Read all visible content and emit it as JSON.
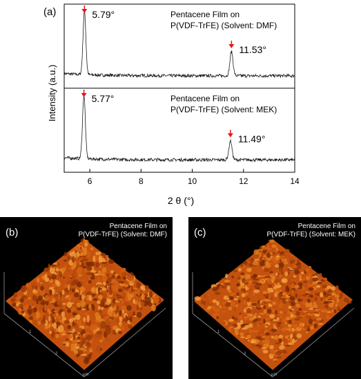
{
  "chart_data": {
    "type": "line",
    "panel_label": "(a)",
    "xlabel": "2 θ (°)",
    "ylabel": "Intensity (a.u.)",
    "xlim": [
      5,
      14
    ],
    "xticks": [
      "6",
      "8",
      "10",
      "12",
      "14"
    ],
    "xtick_values": [
      6,
      8,
      10,
      12,
      14
    ],
    "arrow_color": "#e8141b",
    "line_color": "#1a1a1a",
    "subplots": [
      {
        "title_line1": "Pentacene Film on",
        "title_line2": "P(VDF-TrFE) (Solvent: DMF)",
        "peaks": [
          {
            "x": 5.79,
            "label": "5.79°",
            "height": 1.0
          },
          {
            "x": 11.53,
            "label": "11.53°",
            "height": 0.38
          }
        ]
      },
      {
        "title_line1": "Pentacene Film on",
        "title_line2": "P(VDF-TrFE) (Solvent: MEK)",
        "peaks": [
          {
            "x": 5.77,
            "label": "5.77°",
            "height": 1.0
          },
          {
            "x": 11.49,
            "label": "11.49°",
            "height": 0.3
          }
        ]
      }
    ]
  },
  "afm": {
    "surface_color": "#c4520e",
    "panels": [
      {
        "label": "(b)",
        "title_line1": "Pentacene Film on",
        "title_line2": "P(VDF-TrFE) (Solvent: DMF)",
        "ticks": [
          "1",
          "2",
          "μm"
        ]
      },
      {
        "label": "(c)",
        "title_line1": "Pentacene Film on",
        "title_line2": "P(VDF-TrFE) (Solvent: MEK)",
        "ticks": [
          "1",
          "2",
          "μm"
        ]
      }
    ]
  }
}
